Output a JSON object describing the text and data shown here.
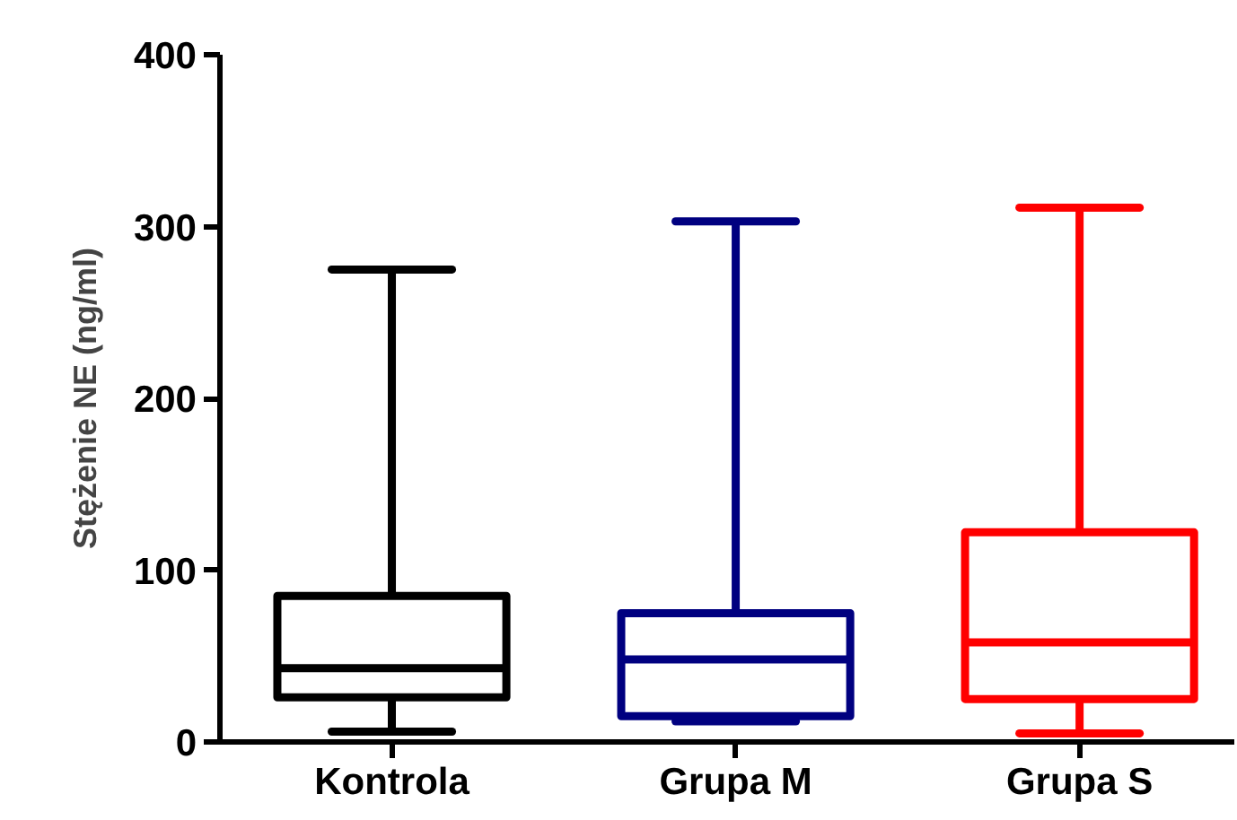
{
  "chart_data": {
    "type": "box",
    "ylabel": "Stężenie NE (ng/ml)",
    "categories": [
      "Kontrola",
      "Grupa M",
      "Grupa S"
    ],
    "colors": [
      "#000000",
      "#000080",
      "#ff0000"
    ],
    "boxes": [
      {
        "low": 6,
        "q1": 26,
        "median": 43,
        "q3": 85,
        "high": 275
      },
      {
        "low": 12,
        "q1": 15,
        "median": 48,
        "q3": 75,
        "high": 303
      },
      {
        "low": 5,
        "q1": 25,
        "median": 58,
        "q3": 122,
        "high": 311
      }
    ],
    "ylim": [
      0,
      400
    ],
    "yticks": [
      0,
      100,
      200,
      300,
      400
    ]
  }
}
